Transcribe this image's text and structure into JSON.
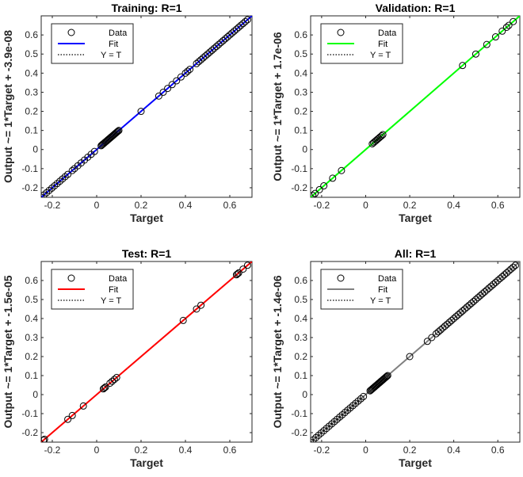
{
  "chart_data": [
    {
      "type": "scatter",
      "title": "Training: R=1",
      "xlabel": "Target",
      "ylabel": "Output ~= 1*Target + -3.9e-08",
      "xlim": [
        -0.25,
        0.7
      ],
      "ylim": [
        -0.25,
        0.7
      ],
      "xticks": [
        -0.2,
        0,
        0.2,
        0.4,
        0.6
      ],
      "xtick_labels": [
        "-0.2",
        "0",
        "0.2",
        "0.4",
        "0.6"
      ],
      "yticks": [
        -0.2,
        -0.1,
        0,
        0.1,
        0.2,
        0.3,
        0.4,
        0.5,
        0.6
      ],
      "ytick_labels": [
        "-0.2",
        "-0.1",
        "0",
        "0.1",
        "0.2",
        "0.3",
        "0.4",
        "0.5",
        "0.6"
      ],
      "grid": false,
      "legend": {
        "placement": "top-left",
        "entries": [
          "Data",
          "Fit",
          "Y = T"
        ]
      },
      "fit_color": "#0000ff",
      "marker_fill": "none",
      "fit": {
        "slope": 1,
        "intercept": -3.9e-08
      },
      "data_ranges": [
        [
          -0.25,
          -0.13,
          0.012
        ],
        [
          -0.1,
          0,
          0.015
        ],
        [
          0.02,
          0.1,
          0.004
        ],
        [
          0.45,
          0.68,
          0.01
        ]
      ],
      "data_points": [
        -0.11,
        0.2,
        0.28,
        0.3,
        0.32,
        0.34,
        0.36,
        0.38,
        0.4,
        0.41,
        0.42
      ]
    },
    {
      "type": "scatter",
      "title": "Validation: R=1",
      "xlabel": "Target",
      "ylabel": "Output ~= 1*Target + 1.7e-06",
      "xlim": [
        -0.25,
        0.7
      ],
      "ylim": [
        -0.25,
        0.7
      ],
      "xticks": [
        -0.2,
        0,
        0.2,
        0.4,
        0.6
      ],
      "xtick_labels": [
        "-0.2",
        "0",
        "0.2",
        "0.4",
        "0.6"
      ],
      "yticks": [
        -0.2,
        -0.1,
        0,
        0.1,
        0.2,
        0.3,
        0.4,
        0.5,
        0.6
      ],
      "ytick_labels": [
        "-0.2",
        "-0.1",
        "0",
        "0.1",
        "0.2",
        "0.3",
        "0.4",
        "0.5",
        "0.6"
      ],
      "grid": false,
      "legend": {
        "placement": "top-left",
        "entries": [
          "Data",
          "Fit",
          "Y = T"
        ]
      },
      "fit_color": "#00ff00",
      "marker_fill": "none",
      "fit": {
        "slope": 1,
        "intercept": 1.7e-06
      },
      "data_ranges": [
        [
          0.03,
          0.08,
          0.006
        ]
      ],
      "data_points": [
        -0.24,
        -0.23,
        -0.21,
        -0.19,
        -0.15,
        -0.11,
        0.44,
        0.5,
        0.55,
        0.59,
        0.62,
        0.64,
        0.65,
        0.67
      ]
    },
    {
      "type": "scatter",
      "title": "Test: R=1",
      "xlabel": "Target",
      "ylabel": "Output ~= 1*Target + -1.5e-05",
      "xlim": [
        -0.25,
        0.7
      ],
      "ylim": [
        -0.25,
        0.7
      ],
      "xticks": [
        -0.2,
        0,
        0.2,
        0.4,
        0.6
      ],
      "xtick_labels": [
        "-0.2",
        "0",
        "0.2",
        "0.4",
        "0.6"
      ],
      "yticks": [
        -0.2,
        -0.1,
        0,
        0.1,
        0.2,
        0.3,
        0.4,
        0.5,
        0.6
      ],
      "ytick_labels": [
        "-0.2",
        "-0.1",
        "0",
        "0.1",
        "0.2",
        "0.3",
        "0.4",
        "0.5",
        "0.6"
      ],
      "grid": false,
      "legend": {
        "placement": "top-left",
        "entries": [
          "Data",
          "Fit",
          "Y = T"
        ]
      },
      "fit_color": "#ff0000",
      "marker_fill": "none",
      "fit": {
        "slope": 1,
        "intercept": -1.5e-05
      },
      "data_ranges": [],
      "data_points": [
        -0.24,
        -0.235,
        -0.13,
        -0.11,
        -0.06,
        0.03,
        0.035,
        0.04,
        0.06,
        0.07,
        0.08,
        0.09,
        0.39,
        0.45,
        0.47,
        0.63,
        0.635,
        0.64,
        0.66,
        0.68
      ]
    },
    {
      "type": "scatter",
      "title": "All: R=1",
      "xlabel": "Target",
      "ylabel": "Output ~= 1*Target + -1.4e-06",
      "xlim": [
        -0.25,
        0.7
      ],
      "ylim": [
        -0.25,
        0.7
      ],
      "xticks": [
        -0.2,
        0,
        0.2,
        0.4,
        0.6
      ],
      "xtick_labels": [
        "-0.2",
        "0",
        "0.2",
        "0.4",
        "0.6"
      ],
      "yticks": [
        -0.2,
        -0.1,
        0,
        0.1,
        0.2,
        0.3,
        0.4,
        0.5,
        0.6
      ],
      "ytick_labels": [
        "-0.2",
        "-0.1",
        "0",
        "0.1",
        "0.2",
        "0.3",
        "0.4",
        "0.5",
        "0.6"
      ],
      "grid": false,
      "legend": {
        "placement": "top-left",
        "entries": [
          "Data",
          "Fit",
          "Y = T"
        ]
      },
      "fit_color": "#808080",
      "marker_fill": "none",
      "fit": {
        "slope": 1,
        "intercept": -1.4e-06
      },
      "data_ranges": [
        [
          -0.25,
          -0.01,
          0.012
        ],
        [
          0.02,
          0.1,
          0.004
        ],
        [
          0.32,
          0.68,
          0.01
        ]
      ],
      "data_points": [
        0.2,
        0.28,
        0.3
      ]
    }
  ]
}
